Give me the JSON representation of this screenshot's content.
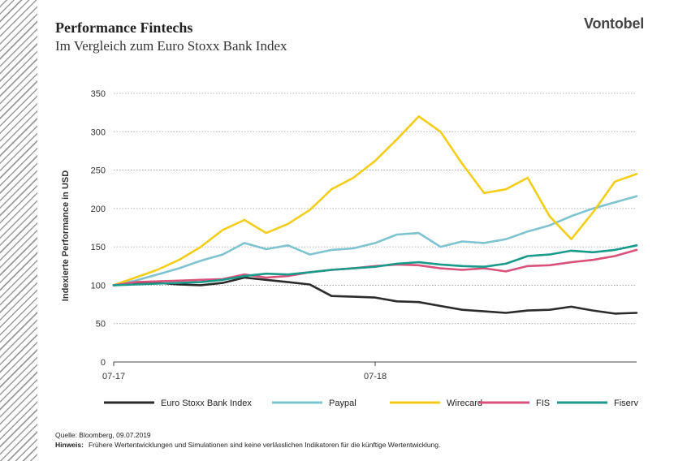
{
  "header": {
    "title": "Performance Fintechs",
    "subtitle": "Im Vergleich zum Euro Stoxx Bank Index",
    "logo": "Vontobel"
  },
  "footer": {
    "source": "Quelle: Bloomberg, 09.07.2019",
    "note_label": "Hinweis:",
    "note_text": "Frühere Wertentwicklungen und Simulationen sind keine verlässlichen Indikatoren für die künftige Wertentwicklung."
  },
  "chart_data": {
    "type": "line",
    "ylabel": "Indexierte Performance in USD",
    "xlabel": "",
    "ylim": [
      0,
      350
    ],
    "yticks": [
      0,
      50,
      100,
      150,
      200,
      250,
      300,
      350
    ],
    "xlim": [
      0,
      24
    ],
    "xticks": [
      {
        "x": 0,
        "label": "07-17"
      },
      {
        "x": 12,
        "label": "07-18"
      }
    ],
    "grid": "horizontal dotted",
    "legend": "bottom",
    "x": [
      0,
      1,
      2,
      3,
      4,
      5,
      6,
      7,
      8,
      9,
      10,
      11,
      12,
      13,
      14,
      15,
      16,
      17,
      18,
      19,
      20,
      21,
      22,
      23,
      24
    ],
    "series": [
      {
        "name": "Euro Stoxx Bank Index",
        "color": "#2b2b2b",
        "values": [
          100,
          102,
          103,
          101,
          100,
          103,
          110,
          107,
          104,
          101,
          86,
          85,
          84,
          79,
          78,
          73,
          68,
          66,
          64,
          67,
          68,
          72,
          67,
          63,
          64
        ]
      },
      {
        "name": "Paypal",
        "color": "#7ec3cf",
        "values": [
          100,
          106,
          114,
          122,
          132,
          140,
          155,
          147,
          152,
          140,
          146,
          148,
          155,
          166,
          168,
          150,
          157,
          155,
          160,
          170,
          178,
          190,
          200,
          208,
          216
        ]
      },
      {
        "name": "Wirecard",
        "color": "#f2cd1a",
        "values": [
          100,
          110,
          120,
          133,
          150,
          172,
          185,
          168,
          180,
          198,
          225,
          240,
          262,
          290,
          320,
          300,
          258,
          220,
          225,
          240,
          190,
          160,
          195,
          235,
          245
        ]
      },
      {
        "name": "FIS",
        "color": "#d9527b",
        "values": [
          100,
          104,
          105,
          106,
          107,
          108,
          114,
          110,
          112,
          117,
          120,
          122,
          125,
          127,
          126,
          122,
          120,
          122,
          118,
          125,
          126,
          130,
          133,
          138,
          146
        ]
      },
      {
        "name": "Fiserv",
        "color": "#1a9a8a",
        "values": [
          100,
          101,
          102,
          103,
          104,
          107,
          112,
          115,
          114,
          117,
          120,
          122,
          124,
          128,
          130,
          127,
          125,
          124,
          128,
          138,
          140,
          145,
          143,
          146,
          152
        ]
      }
    ]
  }
}
